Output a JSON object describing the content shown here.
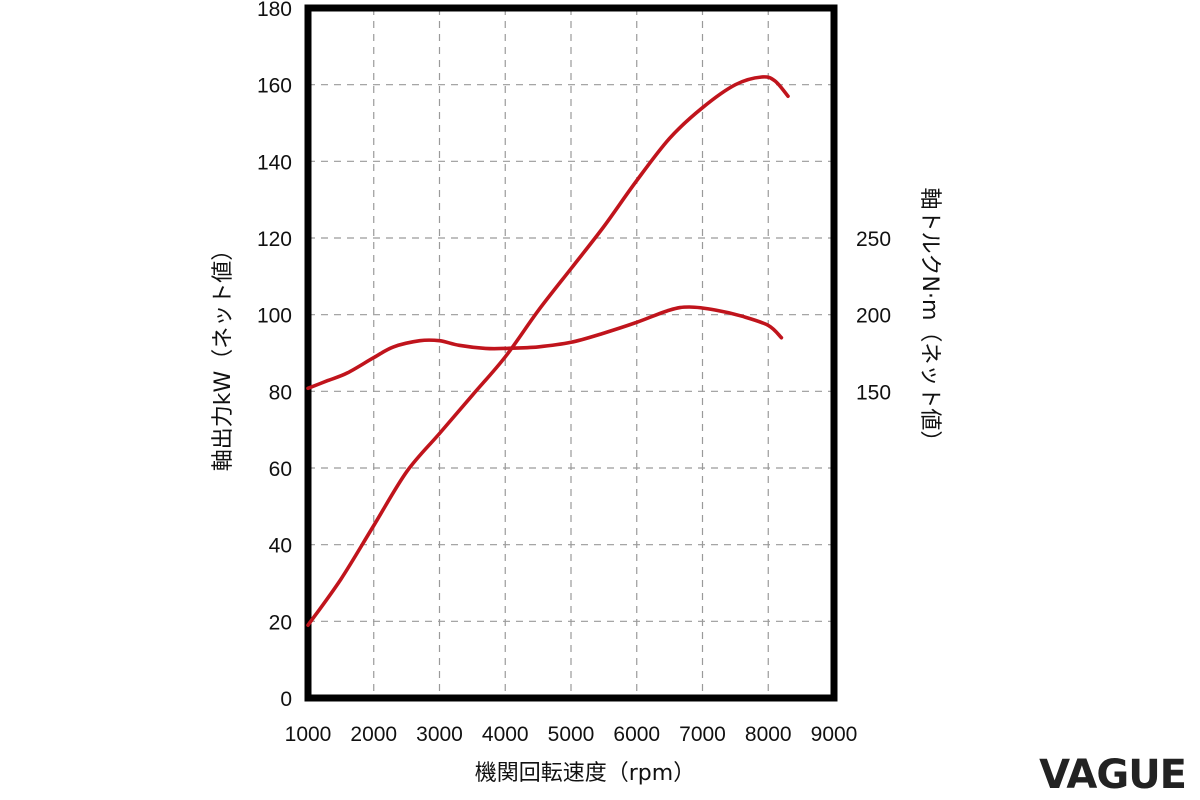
{
  "chart_data": {
    "type": "line",
    "title": "",
    "xlabel": "機関回転速度（rpm）",
    "ylabel_left": "軸出力kW（ネット値）",
    "ylabel_right": "軸トルクN·m（ネット値）",
    "xlim": [
      1000,
      9000
    ],
    "ylim_left": [
      0,
      180
    ],
    "right_axis_scale": {
      "left_value_at_150": 80,
      "left_value_per_50": 20
    },
    "x_ticks": [
      1000,
      2000,
      3000,
      4000,
      5000,
      6000,
      7000,
      8000,
      9000
    ],
    "y_ticks_left": [
      0,
      20,
      40,
      60,
      80,
      100,
      120,
      140,
      160,
      180
    ],
    "y_ticks_right": [
      150,
      200,
      250
    ],
    "grid": true,
    "line_color": "#c0141c",
    "series": [
      {
        "axis": "left",
        "x": [
          1000,
          1500,
          2000,
          2500,
          3000,
          3500,
          4000,
          4500,
          5000,
          5500,
          6000,
          6500,
          7000,
          7500,
          7900,
          8100,
          8300
        ],
        "values": [
          19,
          31,
          45,
          59,
          69,
          79,
          89,
          101,
          112,
          123,
          135,
          146,
          154,
          160,
          162,
          161,
          157
        ]
      },
      {
        "axis": "right",
        "x": [
          1000,
          1300,
          1600,
          2000,
          2300,
          2700,
          3000,
          3300,
          3700,
          4000,
          4500,
          5000,
          5500,
          6000,
          6500,
          6800,
          7200,
          7600,
          8000,
          8200
        ],
        "values": [
          152,
          157,
          162,
          172,
          179,
          183,
          183,
          180,
          178,
          178,
          179,
          182,
          188,
          195,
          203,
          205,
          203,
          199,
          193,
          185
        ]
      }
    ]
  },
  "watermark": {
    "text": "VAGUE"
  }
}
